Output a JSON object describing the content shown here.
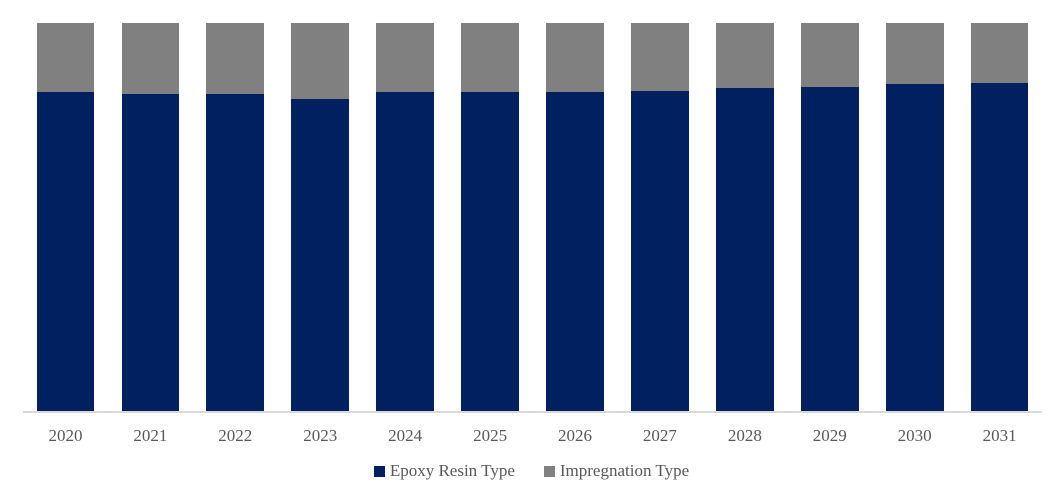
{
  "chart_data": {
    "type": "bar",
    "subtype": "stacked-100-percent",
    "categories": [
      "2020",
      "2021",
      "2022",
      "2023",
      "2024",
      "2025",
      "2026",
      "2027",
      "2028",
      "2029",
      "2030",
      "2031"
    ],
    "series": [
      {
        "name": "Epoxy Resin Type",
        "color": "#002060",
        "values": [
          82.2,
          81.7,
          81.7,
          80.4,
          82.1,
          82.2,
          82.3,
          82.4,
          83.2,
          83.6,
          84.2,
          84.5
        ]
      },
      {
        "name": "Impregnation Type",
        "color": "#808080",
        "values": [
          17.8,
          18.3,
          18.3,
          19.6,
          17.9,
          17.8,
          17.7,
          17.6,
          16.8,
          16.4,
          15.8,
          15.5
        ]
      }
    ],
    "unit": "%",
    "ylim": [
      0,
      100
    ],
    "grid": false,
    "y_axis_visible": false,
    "legend_position": "bottom",
    "axis_line_color": "#d9d9d9",
    "label_color": "#595959",
    "background": "#ffffff"
  }
}
